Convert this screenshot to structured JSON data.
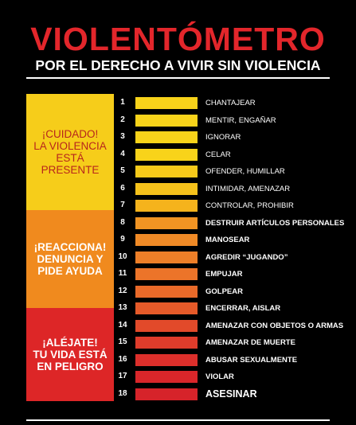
{
  "title": "VIOLENTÓMETRO",
  "subtitle": "POR EL DERECHO A VIVIR SIN VIOLENCIA",
  "zones": [
    {
      "text": "¡CUIDADO!\nLA VIOLENCIA\nESTÁ PRESENTE",
      "color": "#f6cd1a"
    },
    {
      "text": "¡REACCIONA!\nDENUNCIA Y\nPIDE AYUDA",
      "color": "#f08a1e"
    },
    {
      "text": "¡ALÉJATE!\nTU VIDA ESTÁ\nEN PELIGRO",
      "color": "#dd2627"
    }
  ],
  "items": [
    {
      "num": "1",
      "label": "CHANTAJEAR",
      "color": "#f8d31a"
    },
    {
      "num": "2",
      "label": "MENTIR, ENGAÑAR",
      "color": "#f8d31a"
    },
    {
      "num": "3",
      "label": "IGNORAR",
      "color": "#f8d31a"
    },
    {
      "num": "4",
      "label": "CELAR",
      "color": "#f8d31a"
    },
    {
      "num": "5",
      "label": "OFENDER, HUMILLAR",
      "color": "#f7ca1a"
    },
    {
      "num": "6",
      "label": "INTIMIDAR, AMENAZAR",
      "color": "#f6c21b"
    },
    {
      "num": "7",
      "label": "CONTROLAR, PROHIBIR",
      "color": "#f5b31c"
    },
    {
      "num": "8",
      "label": "DESTRUIR ARTÍCULOS PERSONALES",
      "color": "#f19423"
    },
    {
      "num": "9",
      "label": "MANOSEAR",
      "color": "#f08a26"
    },
    {
      "num": "10",
      "label": "AGREDIR “JUGANDO”",
      "color": "#ee7f28"
    },
    {
      "num": "11",
      "label": "EMPUJAR",
      "color": "#ec7429"
    },
    {
      "num": "12",
      "label": "GOLPEAR",
      "color": "#ea6a29"
    },
    {
      "num": "13",
      "label": "ENCERRAR, AISLAR",
      "color": "#e65a29"
    },
    {
      "num": "14",
      "label": "AMENAZAR CON OBJETOS O ARMAS",
      "color": "#e24a2a"
    },
    {
      "num": "15",
      "label": "AMENAZAR DE MUERTE",
      "color": "#df3c2b"
    },
    {
      "num": "16",
      "label": "ABUSAR SEXUALMENTE",
      "color": "#dc2f2b"
    },
    {
      "num": "17",
      "label": "VIOLAR",
      "color": "#d9262a"
    },
    {
      "num": "18",
      "label": "ASESINAR",
      "color": "#d6232a"
    }
  ]
}
